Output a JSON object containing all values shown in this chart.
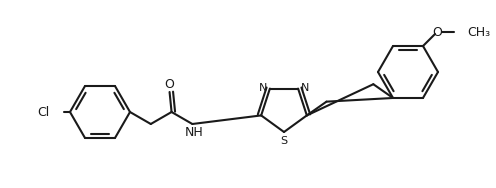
{
  "bg_color": "#ffffff",
  "bond_color": "#1a1a1a",
  "text_color": "#1a1a1a",
  "lw": 1.5,
  "fs": 9.0,
  "figsize": [
    4.96,
    1.88
  ],
  "dpi": 100,
  "xlim": [
    0,
    496
  ],
  "ylim": [
    0,
    188
  ]
}
